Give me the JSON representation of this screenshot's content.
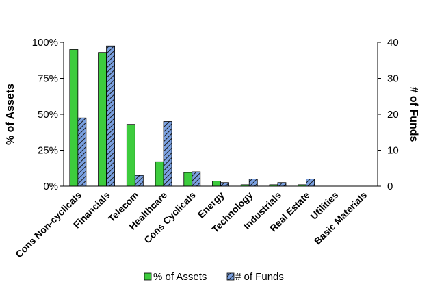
{
  "chart_data": {
    "type": "bar",
    "categories": [
      "Cons Non-cyclicals",
      "Financials",
      "Telecom",
      "Healthcare",
      "Cons Cyclicals",
      "Energy",
      "Technology",
      "Industrials",
      "Real Estate",
      "Utilities",
      "Basic Materials"
    ],
    "series": [
      {
        "name": "% of Assets",
        "axis": "left",
        "color": "#3dcc3d",
        "pattern": "solid",
        "values": [
          95,
          93,
          43,
          17,
          9.5,
          3.5,
          1,
          1,
          1,
          0,
          0
        ]
      },
      {
        "name": "# of Funds",
        "axis": "right",
        "color": "#7aa0e0",
        "pattern": "diagonal-hatch",
        "values": [
          19,
          39,
          3,
          18,
          4,
          1,
          2,
          1,
          2,
          0,
          0
        ]
      }
    ],
    "ylabel": "% of Assets",
    "y2label": "# of Funds",
    "ylim": [
      0,
      100
    ],
    "y2lim": [
      0,
      40
    ],
    "yticks": [
      "0%",
      "25%",
      "50%",
      "75%",
      "100%"
    ],
    "y2ticks": [
      "0",
      "10",
      "20",
      "30",
      "40"
    ],
    "grid": false,
    "legend": "bottom"
  }
}
